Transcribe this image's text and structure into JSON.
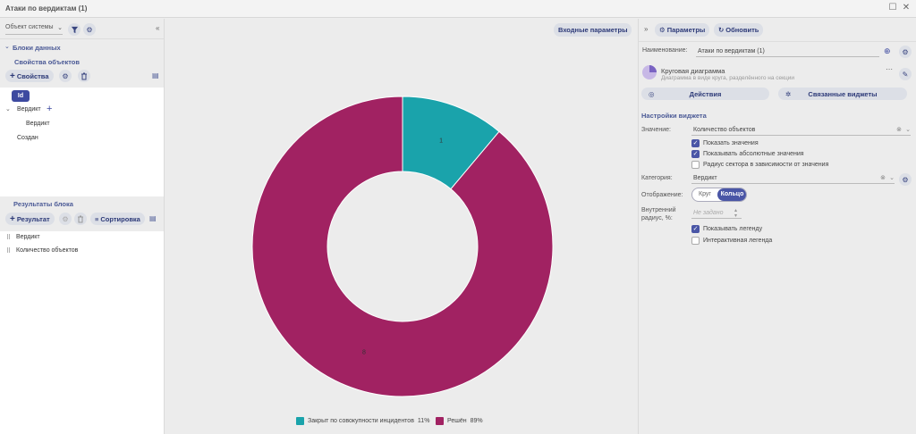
{
  "window": {
    "title": "Атаки по вердиктам (1)"
  },
  "left": {
    "object_select": "Объект системы",
    "data_blocks": "Блоки данных",
    "object_props": "Свойства объектов",
    "props_button": "Свойства",
    "id_chip": "Id",
    "tree": {
      "verdict_group": "Вердикт",
      "verdict_child": "Вердикт",
      "created": "Создан"
    },
    "block_results": "Результаты блока",
    "result_button": "Результат",
    "sort_button": "Сортировка",
    "results": [
      "Вердикт",
      "Количество объектов"
    ]
  },
  "center": {
    "input_params": "Входные параметры"
  },
  "chart_data": {
    "type": "pie",
    "style": "donut",
    "slices": [
      {
        "label": "Закрыт по совокупности инцидентов",
        "value": 1,
        "percent": "11%",
        "color": "#1aa3ab"
      },
      {
        "label": "Решён",
        "value": 8,
        "percent": "89%",
        "color": "#a12262"
      }
    ],
    "legend_position": "bottom"
  },
  "right": {
    "params_button": "Параметры",
    "refresh_button": "Обновить",
    "name_label": "Наименование:",
    "name_value": "Атаки по вердиктам (1)",
    "widget_type_title": "Круговая диаграмма",
    "widget_type_desc": "Диаграмма в виде круга, разделённого на секции",
    "actions_button": "Действия",
    "linked_button": "Связанные виджеты",
    "settings_title": "Настройки виджета",
    "value_label": "Значение:",
    "value_field": "Количество объектов",
    "show_values": "Показать значения",
    "show_abs": "Показывать абсолютные значения",
    "radius_dep": "Радиус сектора в зависимости от значения",
    "category_label": "Категория:",
    "category_value": "Вердикт",
    "display_label": "Отображение:",
    "display_circle": "Круг",
    "display_ring": "Кольцо",
    "inner_radius_label": "Внутренний радиус, %:",
    "inner_radius_placeholder": "Не задано",
    "show_legend": "Показывать легенду",
    "interactive_legend": "Интерактивная легенда"
  },
  "colors": {
    "accent": "#4a56a6",
    "teal": "#1aa3ab",
    "magenta": "#a12262"
  }
}
